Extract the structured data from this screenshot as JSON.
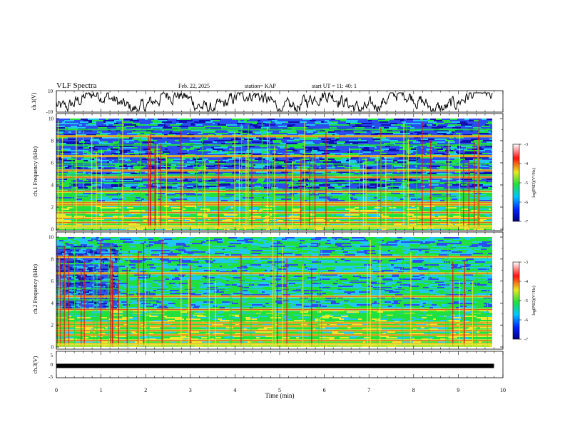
{
  "header": {
    "title": "VLF Spectra",
    "date": "Feb. 22, 2025",
    "station": "station= KAP",
    "start": "start UT =   11: 40: 1"
  },
  "colors": {
    "dark_blue": "#1010b0",
    "blue": "#2a4df0",
    "cyan": "#20c8f0",
    "green": "#20e040",
    "yellow": "#e8e830",
    "red": "#e01010",
    "line": "#000000"
  },
  "chart_data": [
    {
      "type": "line",
      "name": "ch.1 waveform",
      "ylabel": "ch.1(V)",
      "ylim": [
        -10,
        10
      ],
      "ytick_labels": [
        "10",
        "-10"
      ],
      "xlim": [
        0,
        10
      ],
      "description_values": "noisy waveform roughly between -9 and 8 V"
    },
    {
      "type": "heatmap",
      "name": "ch.1 spectrogram",
      "ylabel": "ch.1  Frequency (kHz)",
      "ylim": [
        0,
        10
      ],
      "yticks": [
        "0",
        "2",
        "4",
        "6",
        "8",
        "10"
      ],
      "xlim": [
        0,
        9.8
      ],
      "strong_bands_khz": [
        0.3,
        0.6,
        1.0,
        1.5,
        2.2,
        2.4,
        3.4,
        4.7,
        5.3,
        6.6,
        8.4
      ],
      "weak_bands_khz": [
        3.6,
        3.0,
        4.2,
        4.9,
        5.9,
        7.6,
        9.0
      ],
      "colorbar": {
        "label": "log(PSD)(V²/Hz)",
        "range": [
          -7,
          -3
        ],
        "ticks": [
          "-3",
          "-4",
          "-5",
          "-6",
          "-7"
        ]
      }
    },
    {
      "type": "heatmap",
      "name": "ch.2 spectrogram",
      "ylabel": "ch.2  Frequency (kHz)",
      "ylim": [
        0,
        10
      ],
      "yticks": [
        "0",
        "2",
        "4",
        "6",
        "8",
        "10"
      ],
      "xlim": [
        0,
        9.8
      ],
      "strong_bands_khz": [
        0.3,
        0.6,
        1.1,
        1.5,
        1.9,
        2.2,
        3.4,
        4.6,
        6.7,
        8.2
      ],
      "weak_bands_khz": [
        3.0,
        4.3,
        5.3,
        6.0,
        7.6,
        9.0
      ],
      "colorbar": {
        "label": "log(PSD)(V²/Hz)",
        "range": [
          -7,
          -3
        ],
        "ticks": [
          "-3",
          "-4",
          "-5",
          "-6",
          "-7"
        ]
      }
    },
    {
      "type": "line",
      "name": "ch.3 signal",
      "ylabel": "ch.3(V)",
      "ylim": [
        -5,
        5
      ],
      "ytick_labels": [
        "5",
        "0",
        "-5"
      ],
      "xlim": [
        0,
        9.8
      ],
      "value": -0.5
    }
  ],
  "xaxis": {
    "label": "Time (min)",
    "ticks": [
      "0",
      "1",
      "2",
      "3",
      "4",
      "5",
      "6",
      "7",
      "8",
      "9",
      "10"
    ]
  }
}
